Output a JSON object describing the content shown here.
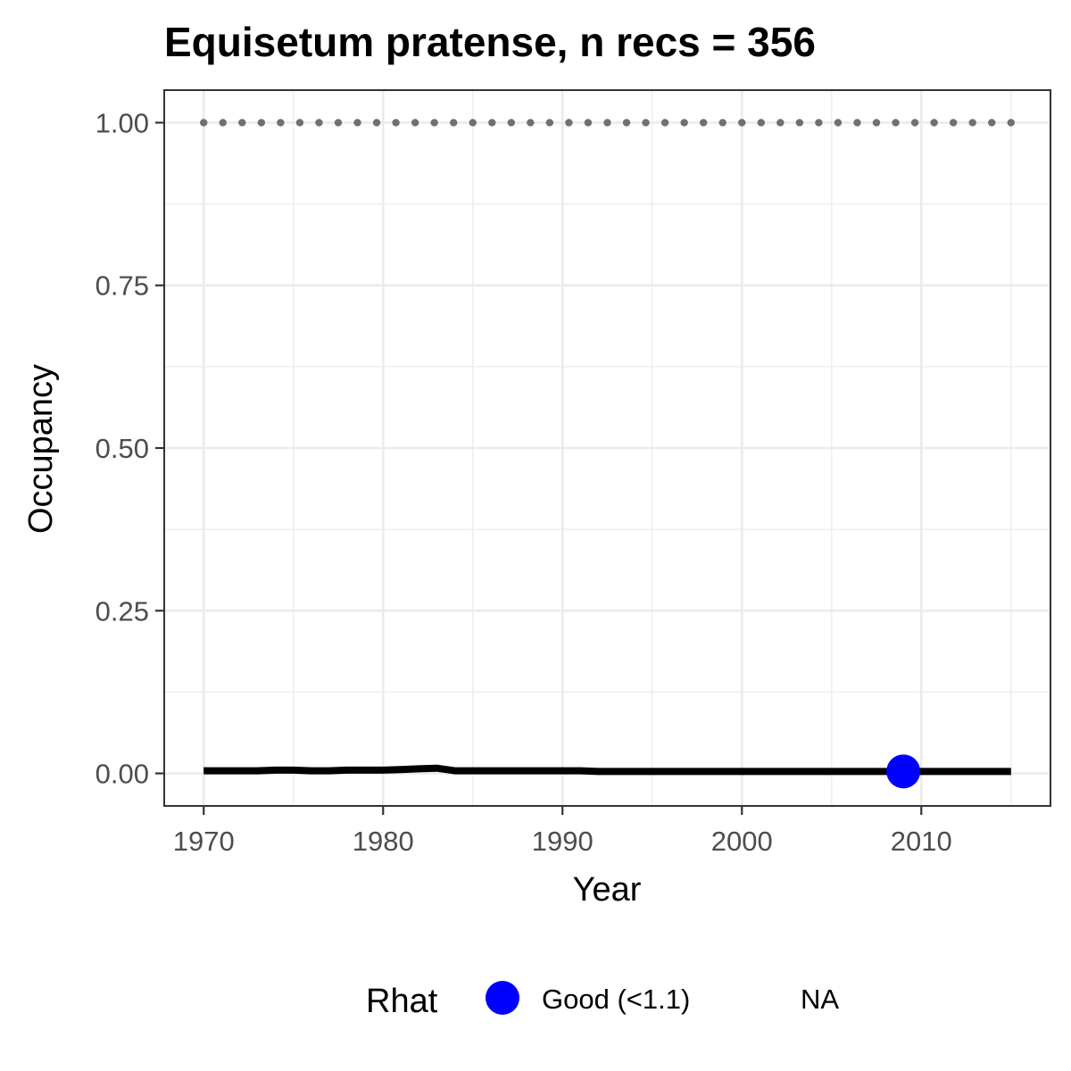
{
  "chart_data": {
    "type": "line",
    "title": "Equisetum pratense, n recs = 356",
    "xlabel": "Year",
    "ylabel": "Occupancy",
    "xlim": [
      1967.8,
      2017.2
    ],
    "ylim": [
      -0.05,
      1.05
    ],
    "x_ticks": [
      1970,
      1980,
      1990,
      2000,
      2010
    ],
    "x_tick_labels": [
      "1970",
      "1980",
      "1990",
      "2000",
      "2010"
    ],
    "y_ticks": [
      0,
      0.25,
      0.5,
      0.75,
      1
    ],
    "y_tick_labels": [
      "0.00",
      "0.25",
      "0.50",
      "0.75",
      "1.00"
    ],
    "grid": true,
    "series": [
      {
        "style": "solid",
        "color": "#000000",
        "x": [
          1970,
          1971,
          1972,
          1973,
          1974,
          1975,
          1976,
          1977,
          1978,
          1979,
          1980,
          1981,
          1982,
          1983,
          1984,
          1985,
          1986,
          1987,
          1988,
          1989,
          1990,
          1991,
          1992,
          1993,
          1994,
          1995,
          1996,
          1997,
          1998,
          1999,
          2000,
          2001,
          2002,
          2003,
          2004,
          2005,
          2006,
          2007,
          2008,
          2009,
          2010,
          2011,
          2012,
          2013,
          2014,
          2015
        ],
        "values": [
          0.004,
          0.004,
          0.004,
          0.004,
          0.005,
          0.005,
          0.004,
          0.004,
          0.005,
          0.005,
          0.005,
          0.006,
          0.007,
          0.008,
          0.004,
          0.004,
          0.004,
          0.004,
          0.004,
          0.004,
          0.004,
          0.004,
          0.003,
          0.003,
          0.003,
          0.003,
          0.003,
          0.003,
          0.003,
          0.003,
          0.003,
          0.003,
          0.003,
          0.003,
          0.003,
          0.003,
          0.003,
          0.003,
          0.003,
          0.003,
          0.003,
          0.003,
          0.003,
          0.003,
          0.003,
          0.003
        ]
      },
      {
        "style": "dotted",
        "color": "#707070",
        "x": [
          1970,
          2015
        ],
        "values": [
          1,
          1
        ]
      }
    ],
    "points": [
      {
        "x": 2009,
        "y": 0.003,
        "group": "Good (<1.1)",
        "color": "#0000ff"
      }
    ],
    "legend": {
      "title": "Rhat",
      "position": "bottom",
      "items": [
        {
          "label": "Good (<1.1)",
          "color": "#0000ff",
          "marker": "circle"
        },
        {
          "label": "NA",
          "color": "",
          "marker": "none"
        }
      ]
    }
  }
}
